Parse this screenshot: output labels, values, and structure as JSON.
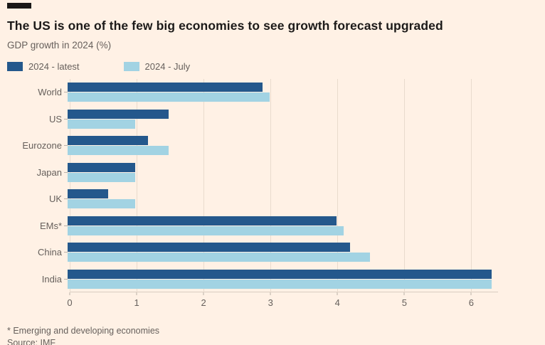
{
  "header": {
    "title": "The US is one of the few big economies to see growth forecast upgraded",
    "subtitle": "GDP growth in 2024 (%)"
  },
  "chart_data": {
    "type": "bar",
    "orientation": "horizontal",
    "title": "The US is one of the few big economies to see growth forecast upgraded",
    "subtitle": "GDP growth in 2024 (%)",
    "categories": [
      "World",
      "US",
      "Eurozone",
      "Japan",
      "UK",
      "EMs*",
      "China",
      "India"
    ],
    "series": [
      {
        "name": "2024 - latest",
        "color": "#24588C",
        "values": [
          2.9,
          1.5,
          1.2,
          1.0,
          0.6,
          4.0,
          4.2,
          6.3
        ]
      },
      {
        "name": "2024 - July",
        "color": "#A2D3E3",
        "values": [
          3.0,
          1.0,
          1.5,
          1.0,
          1.0,
          4.1,
          4.5,
          6.3
        ]
      }
    ],
    "xticks": [
      0,
      1,
      2,
      3,
      4,
      5,
      6
    ],
    "xlim": [
      0,
      6.4
    ],
    "grid": true,
    "legend_position": "top",
    "background": "#FFF1E5"
  },
  "footer": {
    "note": "* Emerging and developing economies",
    "source": "Source: IMF"
  }
}
